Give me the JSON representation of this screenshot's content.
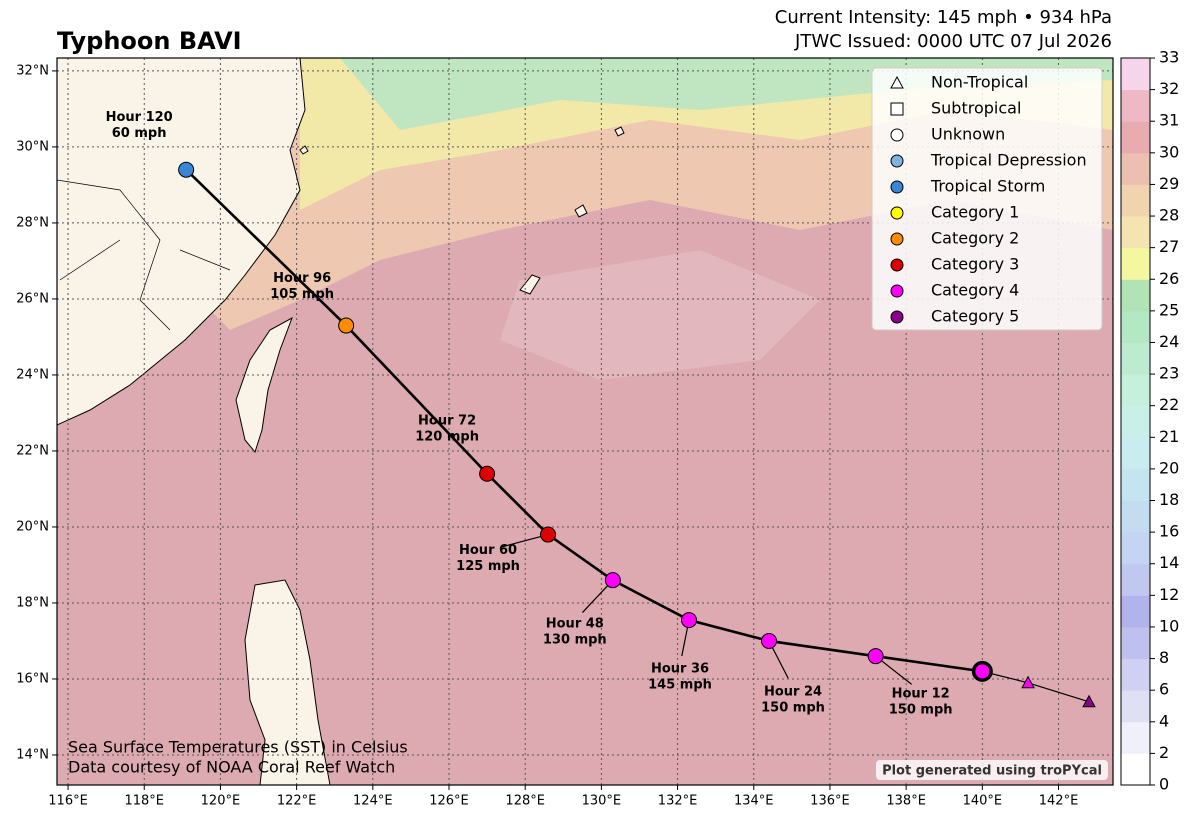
{
  "map": {
    "title": "Typhoon BAVI",
    "intensity": "Current Intensity: 145 mph • 934 hPa",
    "issued": "JTWC Issued: 0000 UTC 07 Jul 2026",
    "note_sst": "Sea Surface Temperatures (SST) in Celsius",
    "note_source": "Data courtesy of NOAA Coral Reef Watch",
    "credit": "Plot generated using troPYcal",
    "xlim": [
      115.71,
      143.43
    ],
    "ylim": [
      13.21,
      32.34
    ],
    "xticks": [
      {
        "value": 116,
        "label": "116°E"
      },
      {
        "value": 118,
        "label": "118°E"
      },
      {
        "value": 120,
        "label": "120°E"
      },
      {
        "value": 122,
        "label": "122°E"
      },
      {
        "value": 124,
        "label": "124°E"
      },
      {
        "value": 126,
        "label": "126°E"
      },
      {
        "value": 128,
        "label": "128°E"
      },
      {
        "value": 130,
        "label": "130°E"
      },
      {
        "value": 132,
        "label": "132°E"
      },
      {
        "value": 134,
        "label": "134°E"
      },
      {
        "value": 136,
        "label": "136°E"
      },
      {
        "value": 138,
        "label": "138°E"
      },
      {
        "value": 140,
        "label": "140°E"
      },
      {
        "value": 142,
        "label": "142°E"
      }
    ],
    "yticks": [
      {
        "value": 14,
        "label": "14°N"
      },
      {
        "value": 16,
        "label": "16°N"
      },
      {
        "value": 18,
        "label": "18°N"
      },
      {
        "value": 20,
        "label": "20°N"
      },
      {
        "value": 22,
        "label": "22°N"
      },
      {
        "value": 24,
        "label": "24°N"
      },
      {
        "value": 26,
        "label": "26°N"
      },
      {
        "value": 28,
        "label": "28°N"
      },
      {
        "value": 30,
        "label": "30°N"
      },
      {
        "value": 32,
        "label": "32°N"
      }
    ],
    "grid": true,
    "legend": [
      {
        "name": "Non-Tropical",
        "marker": "triangle",
        "color": "#ffffff"
      },
      {
        "name": "Subtropical",
        "marker": "square",
        "color": "#ffffff"
      },
      {
        "name": "Unknown",
        "marker": "circle",
        "color": "#ffffff"
      },
      {
        "name": "Tropical Depression",
        "marker": "circle",
        "color": "#7fb3e0"
      },
      {
        "name": "Tropical Storm",
        "marker": "circle",
        "color": "#3a86d4"
      },
      {
        "name": "Category 1",
        "marker": "circle",
        "color": "#ffff00"
      },
      {
        "name": "Category 2",
        "marker": "circle",
        "color": "#ff8c00"
      },
      {
        "name": "Category 3",
        "marker": "circle",
        "color": "#dd0000"
      },
      {
        "name": "Category 4",
        "marker": "circle",
        "color": "#ff00ff"
      },
      {
        "name": "Category 5",
        "marker": "circle",
        "color": "#8b008b"
      }
    ],
    "past": [
      {
        "lon": 141.2,
        "lat": 15.9,
        "color": "#ff00ff"
      },
      {
        "lon": 142.8,
        "lat": 15.4,
        "color": "#8b008b"
      }
    ],
    "track": [
      {
        "lon": 140.0,
        "lat": 16.2,
        "color": "#ff00ff"
      },
      {
        "lon": 137.2,
        "lat": 16.6,
        "color": "#ff00ff",
        "hour": "Hour 12",
        "wind": "150 mph"
      },
      {
        "lon": 134.4,
        "lat": 17.0,
        "color": "#ff00ff",
        "hour": "Hour 24",
        "wind": "150 mph"
      },
      {
        "lon": 132.3,
        "lat": 17.55,
        "color": "#ff00ff",
        "hour": "Hour 36",
        "wind": "145 mph"
      },
      {
        "lon": 130.3,
        "lat": 18.6,
        "color": "#ff00ff",
        "hour": "Hour 48",
        "wind": "130 mph"
      },
      {
        "lon": 128.6,
        "lat": 19.8,
        "color": "#dd0000",
        "hour": "Hour 60",
        "wind": "125 mph"
      },
      {
        "lon": 127.0,
        "lat": 21.4,
        "color": "#dd0000",
        "hour": "Hour 72",
        "wind": "120 mph"
      },
      {
        "lon": 123.3,
        "lat": 25.3,
        "color": "#ff8c00",
        "hour": "Hour 96",
        "wind": "105 mph"
      },
      {
        "lon": 119.1,
        "lat": 29.4,
        "color": "#3a86d4",
        "hour": "Hour 120",
        "wind": "60 mph"
      }
    ],
    "colorbar": {
      "ticks": [
        0,
        2,
        4,
        6,
        8,
        10,
        12,
        14,
        16,
        18,
        20,
        21,
        22,
        23,
        24,
        25,
        26,
        27,
        28,
        29,
        30,
        31,
        32,
        33
      ],
      "colors": [
        "#ffffff",
        "#f0f0fa",
        "#e0e0f5",
        "#d0d0f2",
        "#c0c0ee",
        "#b0b4ea",
        "#c0c8f0",
        "#c4d4f2",
        "#c4dcf0",
        "#c4e4f0",
        "#c8ecf0",
        "#c8f0e8",
        "#c4f0dc",
        "#bcecd0",
        "#b4e8c4",
        "#b0e4b4",
        "#f4f6a0",
        "#f4e4b0",
        "#f0d4b0",
        "#ecc0b0",
        "#e8acb0",
        "#eeb8c4",
        "#f6d4ec"
      ]
    }
  }
}
